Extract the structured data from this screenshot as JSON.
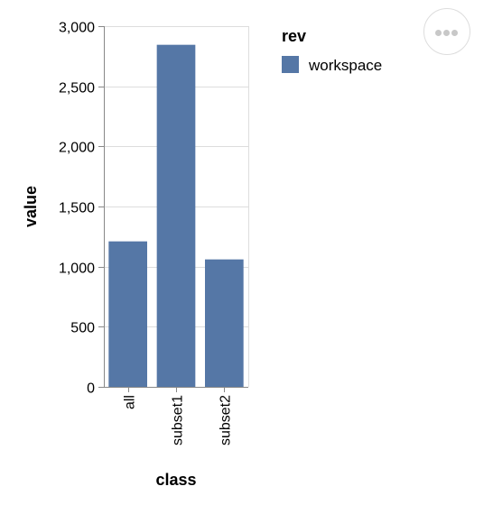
{
  "chart_data": {
    "type": "bar",
    "categories": [
      "all",
      "subset1",
      "subset2"
    ],
    "series": [
      {
        "name": "workspace",
        "values": [
          1210,
          2845,
          1060
        ]
      }
    ],
    "xlabel": "class",
    "ylabel": "value",
    "ylim": [
      0,
      3000
    ],
    "yticks": [
      0,
      500,
      1000,
      1500,
      2000,
      2500,
      3000
    ],
    "ytick_labels": [
      "0",
      "500",
      "1,000",
      "1,500",
      "2,000",
      "2,500",
      "3,000"
    ],
    "grid": true,
    "legend": {
      "title": "rev",
      "position": "right",
      "entries": [
        "workspace"
      ]
    },
    "colors": {
      "workspace": "#5577a6"
    }
  },
  "actions_menu": {
    "icon": "ellipsis-icon"
  }
}
